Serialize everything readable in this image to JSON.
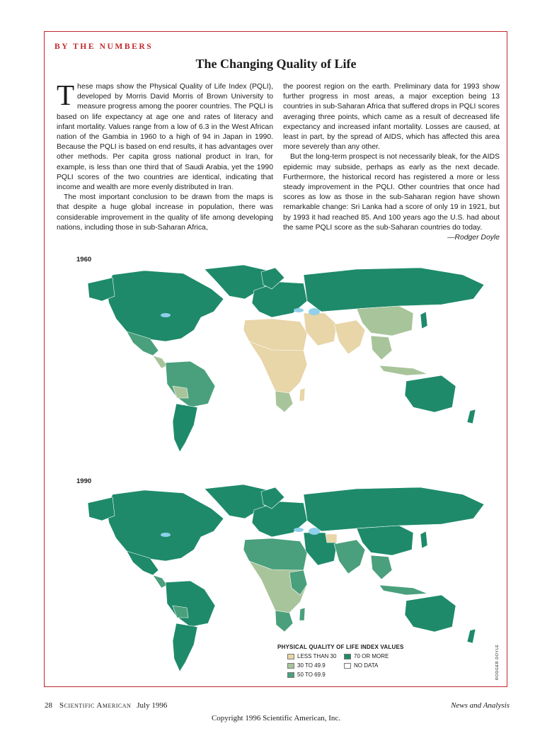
{
  "header": {
    "kicker": "BY THE NUMBERS",
    "title": "The Changing Quality of Life"
  },
  "article": {
    "dropcap": "T",
    "col1": [
      "hese maps show the Physical Quality of Life Index (PQLI), developed by Morris David Morris of Brown University to measure progress among the poorer countries. The PQLI is based on life expectancy at age one and rates of literacy and infant mortality. Values range from a low of 6.3 in the West African nation of the Gambia in 1960 to a high of 94 in Japan in 1990. Because the PQLI is based on end results, it has advantages over other methods. Per capita gross national product in Iran, for example, is less than one third that of Saudi Arabia, yet the 1990 PQLI scores of the two countries are identical, indicating that income and wealth are more evenly distributed in Iran.",
      "The most important conclusion to be drawn from the maps is that despite a huge global increase in population, there was considerable improvement in the quality of life among developing nations, including those in sub-Saharan Africa,"
    ],
    "col2": [
      "the poorest region on the earth. Preliminary data for 1993 show further progress in most areas, a major exception being 13 countries in sub-Saharan Africa that suffered drops in PQLI scores averaging three points, which came as a result of decreased life expectancy and increased infant mortality. Losses are caused, at least in part, by the spread of AIDS, which has affected this area more severely than any other.",
      "But the long-term prospect is not necessarily bleak, for the AIDS epidemic may subside, perhaps as early as the next decade. Furthermore, the historical record has registered a more or less steady improvement in the PQLI. Other countries that once had scores as low as those in the sub-Saharan region have shown remarkable change: Sri Lanka had a score of only 19 in 1921, but by 1993 it had reached 85. And 100 years ago the U.S. had about the same PQLI score as the sub-Saharan countries do today."
    ],
    "signature": "—Rodger Doyle"
  },
  "maps": {
    "map1_label": "1960",
    "map2_label": "1990"
  },
  "legend": {
    "title": "PHYSICAL QUALITY OF LIFE INDEX VALUES",
    "items": [
      {
        "label": "LESS THAN 30",
        "color": "#e8d5a8"
      },
      {
        "label": "70 OR MORE",
        "color": "#1e8a6a"
      },
      {
        "label": "30 TO 49.9",
        "color": "#a8c49a"
      },
      {
        "label": "NO DATA",
        "color": "#ffffff"
      },
      {
        "label": "50 TO 69.9",
        "color": "#4aa07c"
      }
    ]
  },
  "colors": {
    "accent": "#c3262b",
    "water": "#8fd0ea"
  },
  "credit": "RODGER DOYLE",
  "footer": {
    "page_number": "28",
    "magazine": "Scientific American",
    "date": "July 1996",
    "section": "News and Analysis",
    "copyright": "Copyright 1996 Scientific American, Inc."
  }
}
